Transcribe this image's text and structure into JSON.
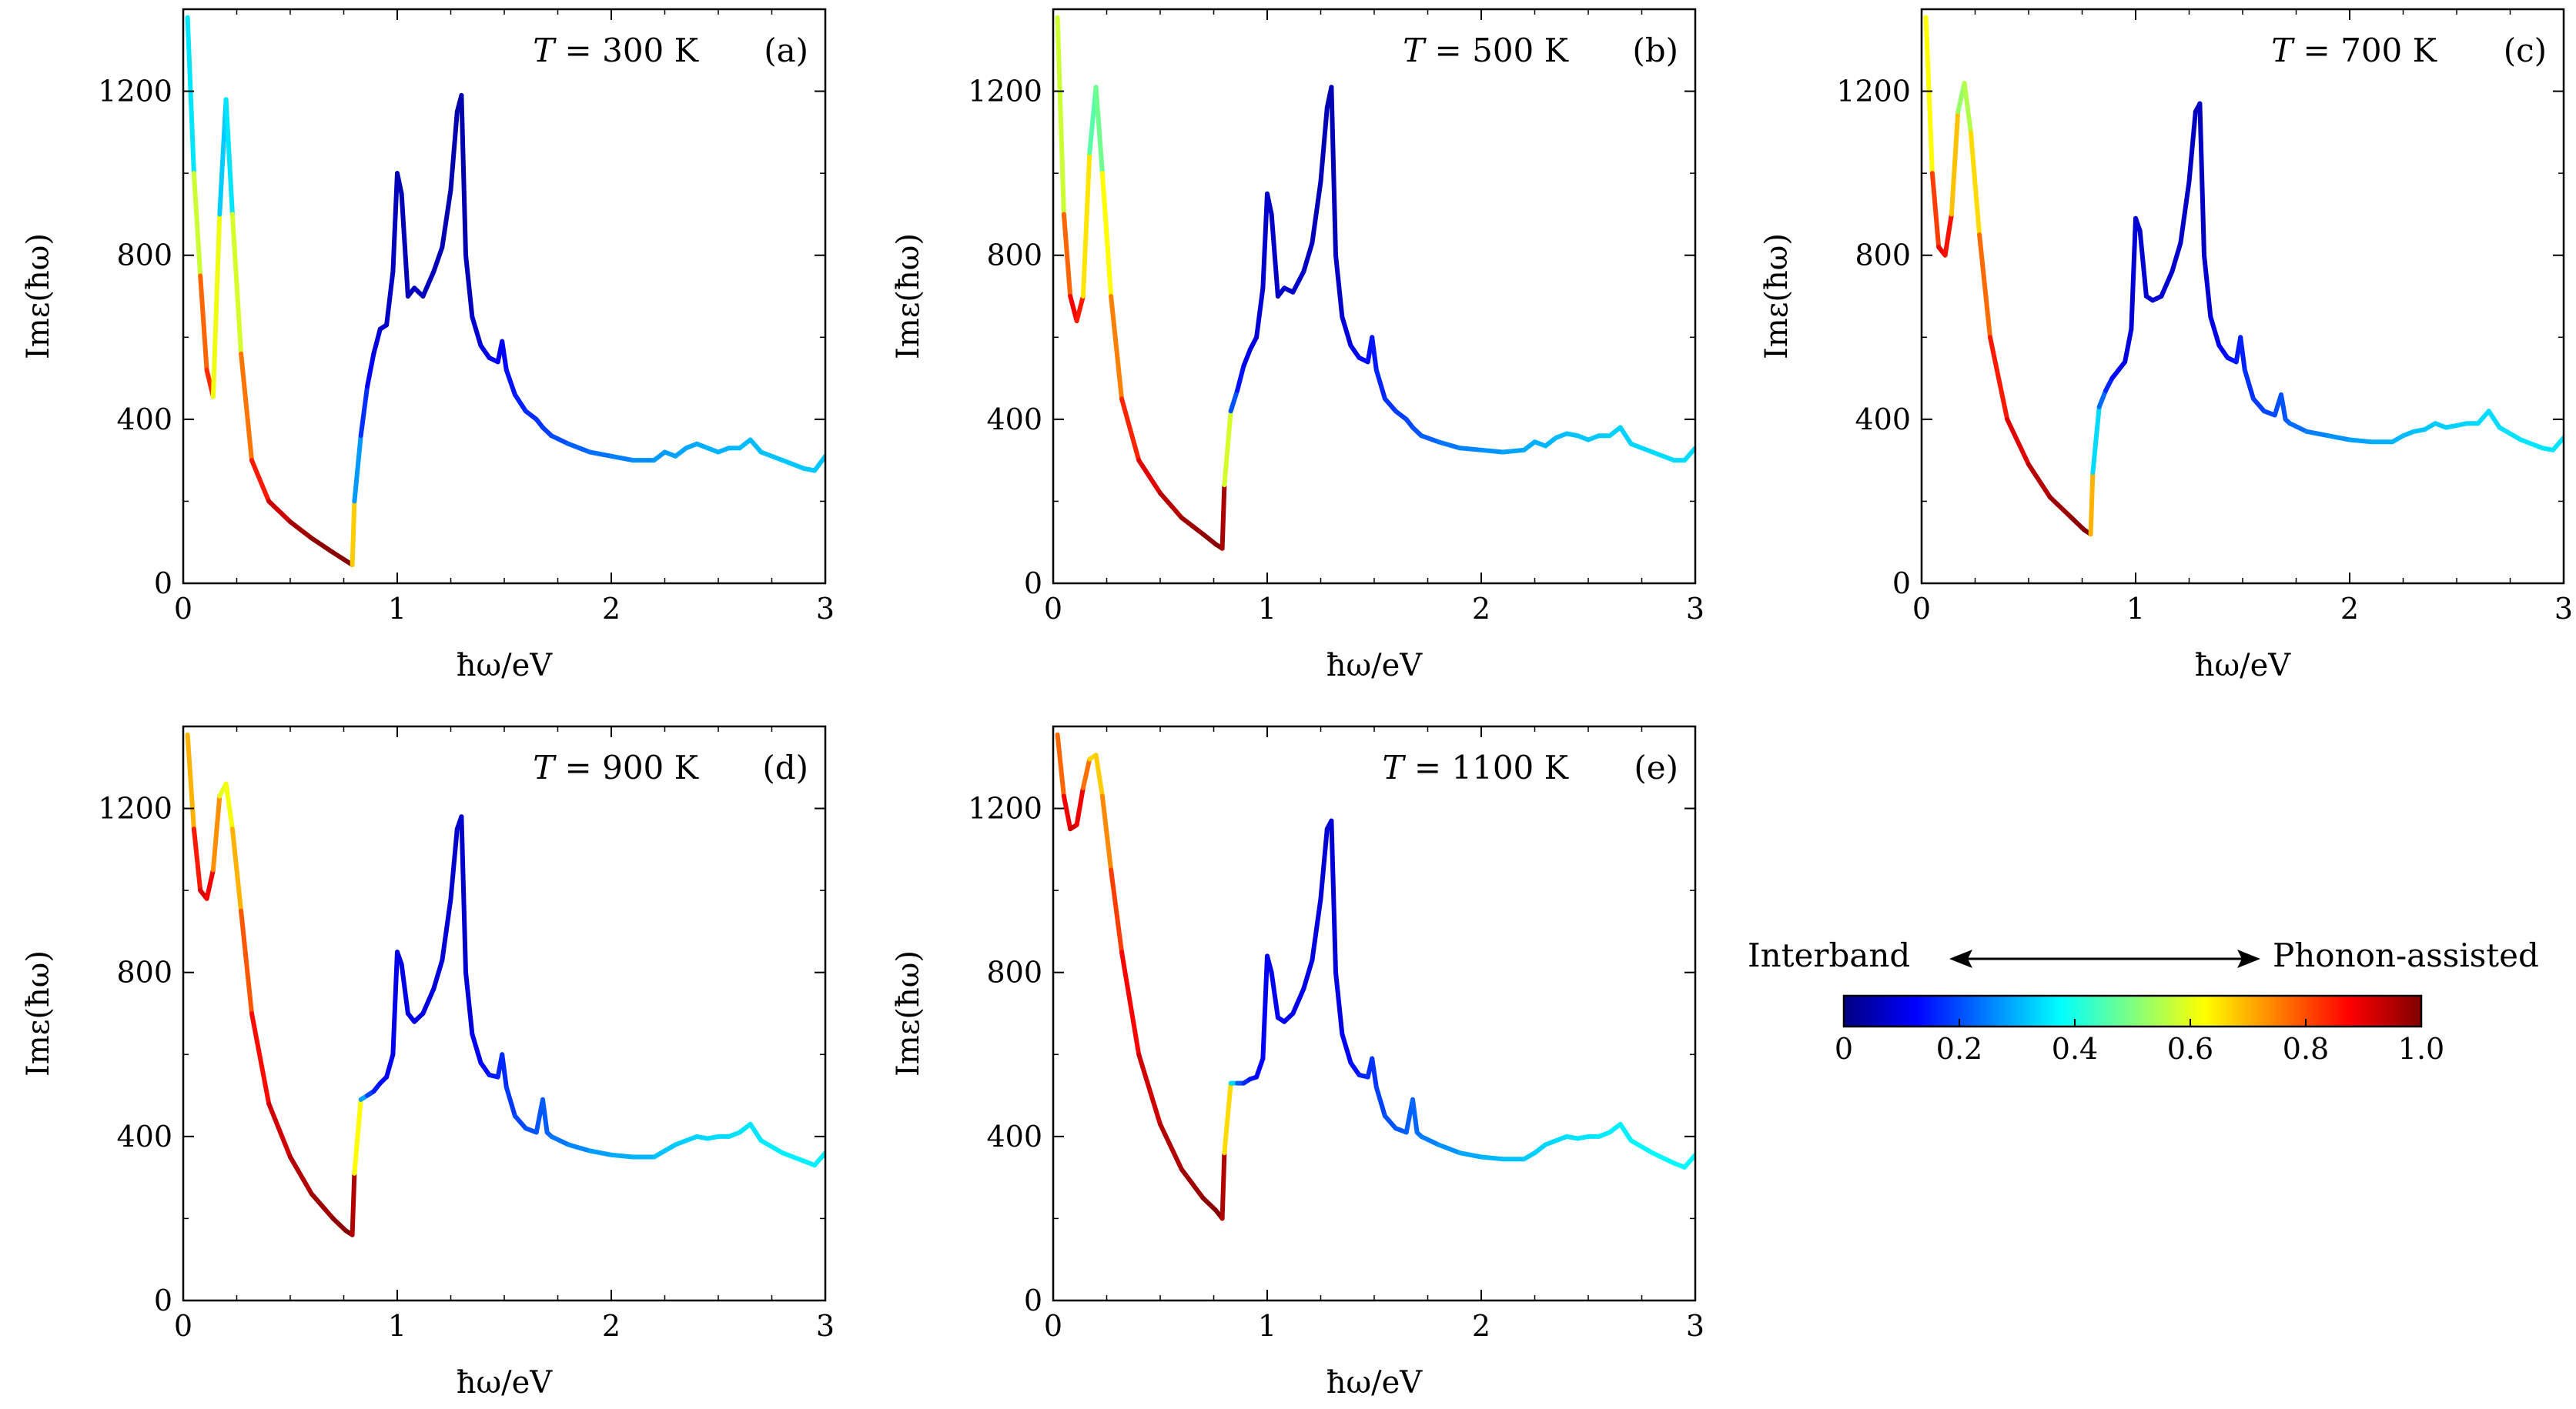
{
  "figure": {
    "colorbar": {
      "left_label": "Interband",
      "right_label": "Phonon-assisted",
      "tick_labels": [
        "0",
        "0.2",
        "0.4",
        "0.6",
        "0.8",
        "1.0"
      ],
      "range": [
        0,
        1.0
      ],
      "colormap": "jet",
      "stops": [
        "#00007f",
        "#0000ff",
        "#007fff",
        "#00ffff",
        "#7fff7f",
        "#ffff00",
        "#ff7f00",
        "#ff0000",
        "#7f0000"
      ]
    }
  },
  "chart_data": [
    {
      "type": "line",
      "panel": "(a)",
      "annotation": "T = 300 K",
      "annotation_T": "T",
      "annotation_rest": " = 300 K",
      "panel_label": "(a)",
      "xlabel": "ħω/eV",
      "ylabel": "Imε(ħω)",
      "xlim": [
        0,
        3
      ],
      "ylim": [
        0,
        1400
      ],
      "xticks": [
        "0",
        "1",
        "2",
        "3"
      ],
      "yticks": [
        "0",
        "400",
        "800",
        "1200"
      ],
      "color_encoding": "fraction of phonon-assisted contribution (0 = interband, 1 = phonon-assisted)",
      "x": [
        0.02,
        0.05,
        0.08,
        0.11,
        0.14,
        0.17,
        0.2,
        0.23,
        0.27,
        0.32,
        0.4,
        0.5,
        0.6,
        0.7,
        0.76,
        0.79,
        0.8,
        0.83,
        0.86,
        0.89,
        0.92,
        0.95,
        0.98,
        1.0,
        1.02,
        1.05,
        1.08,
        1.12,
        1.17,
        1.21,
        1.25,
        1.28,
        1.3,
        1.32,
        1.35,
        1.39,
        1.43,
        1.47,
        1.49,
        1.51,
        1.55,
        1.6,
        1.65,
        1.68,
        1.72,
        1.8,
        1.9,
        2.0,
        2.1,
        2.2,
        2.25,
        2.3,
        2.35,
        2.4,
        2.45,
        2.5,
        2.55,
        2.6,
        2.65,
        2.7,
        2.8,
        2.9,
        2.95,
        3.0
      ],
      "y": [
        1380,
        1000,
        750,
        520,
        455,
        900,
        1180,
        900,
        560,
        300,
        200,
        150,
        110,
        75,
        55,
        45,
        200,
        360,
        480,
        560,
        620,
        630,
        760,
        1000,
        950,
        700,
        720,
        700,
        760,
        820,
        960,
        1150,
        1190,
        800,
        650,
        580,
        550,
        540,
        590,
        520,
        460,
        420,
        400,
        380,
        360,
        340,
        320,
        310,
        300,
        300,
        320,
        310,
        330,
        340,
        330,
        320,
        330,
        330,
        350,
        320,
        300,
        280,
        275,
        310
      ],
      "c": [
        0.25,
        0.45,
        0.7,
        0.85,
        0.82,
        0.4,
        0.25,
        0.45,
        0.72,
        0.8,
        0.9,
        0.95,
        0.98,
        0.99,
        0.99,
        1.0,
        0.35,
        0.2,
        0.14,
        0.1,
        0.08,
        0.07,
        0.07,
        0.05,
        0.05,
        0.06,
        0.06,
        0.06,
        0.06,
        0.05,
        0.05,
        0.04,
        0.04,
        0.05,
        0.07,
        0.09,
        0.1,
        0.12,
        0.12,
        0.13,
        0.15,
        0.16,
        0.17,
        0.18,
        0.19,
        0.21,
        0.23,
        0.24,
        0.26,
        0.27,
        0.28,
        0.28,
        0.29,
        0.29,
        0.3,
        0.3,
        0.3,
        0.31,
        0.31,
        0.31,
        0.32,
        0.32,
        0.32,
        0.32
      ]
    },
    {
      "type": "line",
      "panel": "(b)",
      "annotation": "T = 500 K",
      "annotation_T": "T",
      "annotation_rest": " = 500 K",
      "panel_label": "(b)",
      "xlabel": "ħω/eV",
      "ylabel": "Imε(ħω)",
      "xlim": [
        0,
        3
      ],
      "ylim": [
        0,
        1400
      ],
      "xticks": [
        "0",
        "1",
        "2",
        "3"
      ],
      "yticks": [
        "0",
        "400",
        "800",
        "1200"
      ],
      "color_encoding": "fraction of phonon-assisted contribution (0 = interband, 1 = phonon-assisted)",
      "x": [
        0.02,
        0.05,
        0.08,
        0.11,
        0.14,
        0.17,
        0.2,
        0.23,
        0.27,
        0.32,
        0.4,
        0.5,
        0.6,
        0.7,
        0.76,
        0.79,
        0.8,
        0.83,
        0.86,
        0.89,
        0.92,
        0.95,
        0.98,
        1.0,
        1.02,
        1.05,
        1.08,
        1.12,
        1.17,
        1.21,
        1.25,
        1.28,
        1.3,
        1.32,
        1.35,
        1.39,
        1.43,
        1.47,
        1.49,
        1.51,
        1.55,
        1.6,
        1.65,
        1.68,
        1.72,
        1.8,
        1.9,
        2.0,
        2.1,
        2.2,
        2.25,
        2.3,
        2.35,
        2.4,
        2.45,
        2.5,
        2.55,
        2.6,
        2.65,
        2.7,
        2.8,
        2.9,
        2.95,
        3.0
      ],
      "y": [
        1380,
        900,
        700,
        640,
        700,
        1050,
        1210,
        1000,
        700,
        450,
        300,
        220,
        160,
        120,
        95,
        85,
        240,
        420,
        470,
        530,
        570,
        600,
        720,
        950,
        900,
        700,
        720,
        710,
        760,
        830,
        980,
        1160,
        1210,
        800,
        650,
        580,
        550,
        540,
        600,
        520,
        450,
        420,
        400,
        380,
        360,
        345,
        330,
        325,
        320,
        325,
        345,
        335,
        355,
        365,
        360,
        350,
        360,
        360,
        380,
        340,
        320,
        300,
        300,
        330
      ],
      "c": [
        0.45,
        0.7,
        0.85,
        0.9,
        0.8,
        0.5,
        0.42,
        0.55,
        0.7,
        0.8,
        0.88,
        0.93,
        0.96,
        0.98,
        0.99,
        1.0,
        0.92,
        0.25,
        0.16,
        0.12,
        0.1,
        0.09,
        0.08,
        0.07,
        0.07,
        0.07,
        0.07,
        0.07,
        0.07,
        0.06,
        0.06,
        0.05,
        0.05,
        0.06,
        0.08,
        0.1,
        0.12,
        0.14,
        0.14,
        0.15,
        0.17,
        0.18,
        0.19,
        0.2,
        0.21,
        0.23,
        0.25,
        0.26,
        0.28,
        0.29,
        0.3,
        0.3,
        0.31,
        0.31,
        0.32,
        0.32,
        0.32,
        0.33,
        0.33,
        0.33,
        0.34,
        0.34,
        0.34,
        0.34
      ]
    },
    {
      "type": "line",
      "panel": "(c)",
      "annotation": "T = 700 K",
      "annotation_T": "T",
      "annotation_rest": " = 700 K",
      "panel_label": "(c)",
      "xlabel": "ħω/eV",
      "ylabel": "Imε(ħω)",
      "xlim": [
        0,
        3
      ],
      "ylim": [
        0,
        1400
      ],
      "xticks": [
        "0",
        "1",
        "2",
        "3"
      ],
      "yticks": [
        "0",
        "400",
        "800",
        "1200"
      ],
      "color_encoding": "fraction of phonon-assisted contribution (0 = interband, 1 = phonon-assisted)",
      "x": [
        0.02,
        0.05,
        0.08,
        0.11,
        0.14,
        0.17,
        0.2,
        0.23,
        0.27,
        0.32,
        0.4,
        0.5,
        0.6,
        0.7,
        0.76,
        0.79,
        0.8,
        0.83,
        0.86,
        0.89,
        0.92,
        0.95,
        0.98,
        1.0,
        1.02,
        1.05,
        1.08,
        1.12,
        1.17,
        1.21,
        1.25,
        1.28,
        1.3,
        1.32,
        1.35,
        1.39,
        1.43,
        1.47,
        1.49,
        1.51,
        1.55,
        1.6,
        1.65,
        1.68,
        1.7,
        1.72,
        1.8,
        1.9,
        2.0,
        2.1,
        2.2,
        2.25,
        2.3,
        2.35,
        2.4,
        2.45,
        2.5,
        2.55,
        2.6,
        2.65,
        2.7,
        2.8,
        2.9,
        2.95,
        3.0
      ],
      "y": [
        1380,
        1000,
        820,
        800,
        900,
        1150,
        1220,
        1100,
        850,
        600,
        400,
        290,
        210,
        160,
        130,
        120,
        270,
        430,
        470,
        500,
        520,
        540,
        620,
        890,
        860,
        700,
        690,
        700,
        760,
        830,
        980,
        1150,
        1170,
        800,
        650,
        580,
        550,
        540,
        600,
        520,
        450,
        420,
        410,
        460,
        400,
        390,
        370,
        360,
        350,
        345,
        345,
        360,
        370,
        375,
        390,
        380,
        385,
        390,
        390,
        420,
        380,
        350,
        330,
        325,
        355
      ],
      "c": [
        0.5,
        0.75,
        0.88,
        0.9,
        0.82,
        0.55,
        0.5,
        0.6,
        0.72,
        0.82,
        0.88,
        0.93,
        0.96,
        0.98,
        0.99,
        1.0,
        0.4,
        0.28,
        0.18,
        0.14,
        0.12,
        0.1,
        0.09,
        0.08,
        0.08,
        0.08,
        0.08,
        0.08,
        0.08,
        0.07,
        0.07,
        0.06,
        0.06,
        0.07,
        0.09,
        0.11,
        0.13,
        0.15,
        0.15,
        0.16,
        0.18,
        0.19,
        0.2,
        0.2,
        0.21,
        0.22,
        0.24,
        0.26,
        0.28,
        0.29,
        0.3,
        0.31,
        0.31,
        0.32,
        0.32,
        0.33,
        0.33,
        0.33,
        0.34,
        0.34,
        0.34,
        0.35,
        0.35,
        0.35,
        0.35
      ]
    },
    {
      "type": "line",
      "panel": "(d)",
      "annotation": "T = 900 K",
      "annotation_T": "T",
      "annotation_rest": " = 900 K",
      "panel_label": "(d)",
      "xlabel": "ħω/eV",
      "ylabel": "Imε(ħω)",
      "xlim": [
        0,
        3
      ],
      "ylim": [
        0,
        1400
      ],
      "xticks": [
        "0",
        "1",
        "2",
        "3"
      ],
      "yticks": [
        "0",
        "400",
        "800",
        "1200"
      ],
      "color_encoding": "fraction of phonon-assisted contribution (0 = interband, 1 = phonon-assisted)",
      "x": [
        0.02,
        0.05,
        0.08,
        0.11,
        0.14,
        0.17,
        0.2,
        0.23,
        0.27,
        0.32,
        0.4,
        0.5,
        0.6,
        0.7,
        0.76,
        0.79,
        0.8,
        0.83,
        0.86,
        0.89,
        0.92,
        0.95,
        0.98,
        1.0,
        1.02,
        1.05,
        1.08,
        1.12,
        1.17,
        1.21,
        1.25,
        1.28,
        1.3,
        1.32,
        1.35,
        1.39,
        1.43,
        1.47,
        1.49,
        1.51,
        1.55,
        1.6,
        1.65,
        1.68,
        1.7,
        1.72,
        1.8,
        1.9,
        2.0,
        2.1,
        2.2,
        2.25,
        2.3,
        2.35,
        2.4,
        2.45,
        2.5,
        2.55,
        2.6,
        2.65,
        2.7,
        2.8,
        2.9,
        2.95,
        3.0
      ],
      "y": [
        1380,
        1150,
        1000,
        980,
        1050,
        1230,
        1260,
        1150,
        950,
        700,
        480,
        350,
        260,
        200,
        170,
        160,
        310,
        490,
        500,
        510,
        530,
        545,
        600,
        850,
        820,
        700,
        680,
        700,
        760,
        830,
        980,
        1150,
        1180,
        800,
        650,
        580,
        550,
        545,
        600,
        520,
        450,
        420,
        410,
        490,
        410,
        400,
        380,
        365,
        355,
        350,
        350,
        365,
        380,
        390,
        400,
        395,
        400,
        400,
        410,
        430,
        390,
        360,
        340,
        330,
        360
      ],
      "c": [
        0.6,
        0.8,
        0.9,
        0.92,
        0.85,
        0.62,
        0.58,
        0.65,
        0.75,
        0.83,
        0.9,
        0.94,
        0.96,
        0.98,
        0.99,
        1.0,
        0.9,
        0.35,
        0.22,
        0.16,
        0.14,
        0.12,
        0.11,
        0.1,
        0.1,
        0.1,
        0.1,
        0.1,
        0.09,
        0.09,
        0.08,
        0.07,
        0.07,
        0.08,
        0.1,
        0.12,
        0.14,
        0.16,
        0.16,
        0.17,
        0.19,
        0.2,
        0.21,
        0.21,
        0.22,
        0.23,
        0.25,
        0.27,
        0.29,
        0.3,
        0.31,
        0.32,
        0.32,
        0.33,
        0.33,
        0.34,
        0.34,
        0.34,
        0.35,
        0.35,
        0.35,
        0.36,
        0.36,
        0.36,
        0.36
      ]
    },
    {
      "type": "line",
      "panel": "(e)",
      "annotation": "T = 1100 K",
      "annotation_T": "T",
      "annotation_rest": " = 1100 K",
      "panel_label": "(e)",
      "xlabel": "ħω/eV",
      "ylabel": "Imε(ħω)",
      "xlim": [
        0,
        3
      ],
      "ylim": [
        0,
        1400
      ],
      "xticks": [
        "0",
        "1",
        "2",
        "3"
      ],
      "yticks": [
        "0",
        "400",
        "800",
        "1200"
      ],
      "color_encoding": "fraction of phonon-assisted contribution (0 = interband, 1 = phonon-assisted)",
      "x": [
        0.02,
        0.05,
        0.08,
        0.11,
        0.14,
        0.17,
        0.2,
        0.23,
        0.27,
        0.32,
        0.4,
        0.5,
        0.6,
        0.7,
        0.76,
        0.79,
        0.8,
        0.83,
        0.86,
        0.89,
        0.92,
        0.95,
        0.98,
        1.0,
        1.02,
        1.05,
        1.08,
        1.12,
        1.17,
        1.21,
        1.25,
        1.28,
        1.3,
        1.32,
        1.35,
        1.39,
        1.43,
        1.47,
        1.49,
        1.51,
        1.55,
        1.6,
        1.65,
        1.68,
        1.7,
        1.72,
        1.8,
        1.9,
        2.0,
        2.1,
        2.2,
        2.25,
        2.3,
        2.35,
        2.4,
        2.45,
        2.5,
        2.55,
        2.6,
        2.65,
        2.7,
        2.8,
        2.9,
        2.95,
        3.0
      ],
      "y": [
        1380,
        1230,
        1150,
        1160,
        1250,
        1320,
        1330,
        1230,
        1050,
        850,
        600,
        430,
        320,
        250,
        220,
        200,
        360,
        530,
        530,
        530,
        540,
        545,
        590,
        840,
        800,
        690,
        680,
        700,
        760,
        830,
        980,
        1150,
        1170,
        800,
        650,
        580,
        550,
        545,
        590,
        520,
        450,
        420,
        410,
        490,
        410,
        400,
        380,
        360,
        350,
        345,
        345,
        360,
        380,
        390,
        400,
        395,
        400,
        400,
        410,
        430,
        390,
        360,
        335,
        325,
        355
      ],
      "c": [
        0.7,
        0.85,
        0.92,
        0.93,
        0.85,
        0.68,
        0.65,
        0.7,
        0.78,
        0.85,
        0.9,
        0.94,
        0.96,
        0.98,
        0.99,
        1.0,
        0.9,
        0.42,
        0.25,
        0.18,
        0.15,
        0.13,
        0.12,
        0.11,
        0.11,
        0.11,
        0.11,
        0.11,
        0.1,
        0.1,
        0.09,
        0.08,
        0.08,
        0.09,
        0.11,
        0.13,
        0.15,
        0.17,
        0.17,
        0.18,
        0.2,
        0.21,
        0.22,
        0.22,
        0.23,
        0.24,
        0.26,
        0.28,
        0.3,
        0.31,
        0.32,
        0.33,
        0.33,
        0.34,
        0.34,
        0.35,
        0.35,
        0.35,
        0.36,
        0.36,
        0.36,
        0.37,
        0.37,
        0.37,
        0.37
      ]
    }
  ]
}
